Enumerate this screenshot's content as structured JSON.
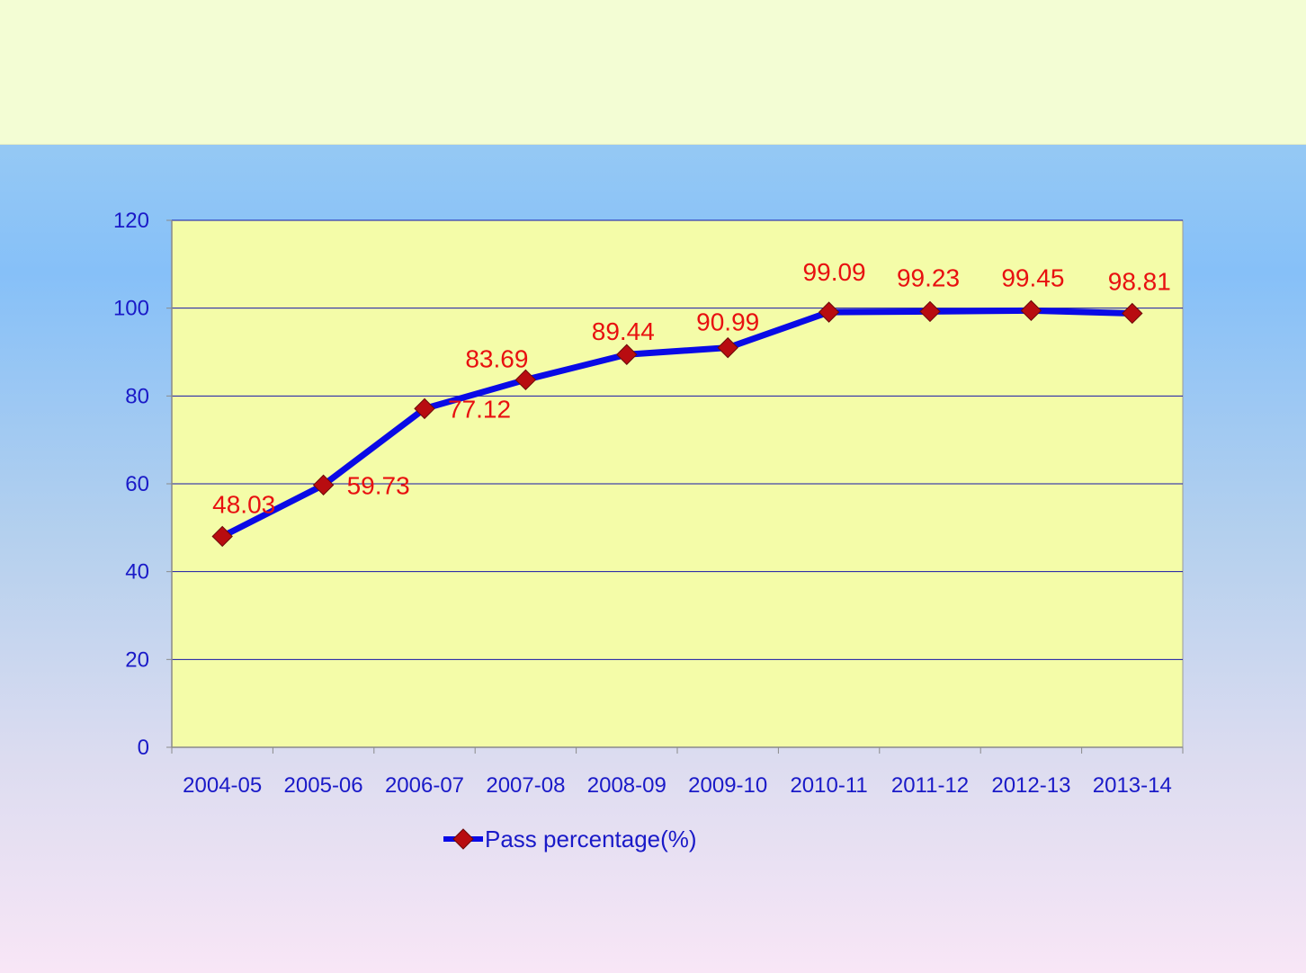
{
  "chart_data": {
    "type": "line",
    "categories": [
      "2004-05",
      "2005-06",
      "2006-07",
      "2007-08",
      "2008-09",
      "2009-10",
      "2010-11",
      "2011-12",
      "2012-13",
      "2013-14"
    ],
    "series": [
      {
        "name": "Pass percentage(%)",
        "values": [
          48.03,
          59.73,
          77.12,
          83.69,
          89.44,
          90.99,
          99.09,
          99.23,
          99.45,
          98.81
        ],
        "labels": [
          "48.03",
          "59.73",
          "77.12",
          "83.69",
          "89.44",
          "90.99",
          "99.09",
          "99.23",
          "99.45",
          "98.81"
        ]
      }
    ],
    "ylim": [
      0,
      120
    ],
    "yticks": [
      0,
      20,
      40,
      60,
      80,
      100,
      120
    ],
    "ytick_labels": [
      "0",
      "20",
      "40",
      "60",
      "80",
      "100",
      "120"
    ],
    "grid": true,
    "legend_position": "bottom",
    "colors": {
      "plot_background": "#f4fca8",
      "line": "#0a0ae6",
      "marker": "#b80c10",
      "data_label": "#e81010",
      "axis_text": "#1a1ac8",
      "gridline": "#1414a8"
    }
  }
}
